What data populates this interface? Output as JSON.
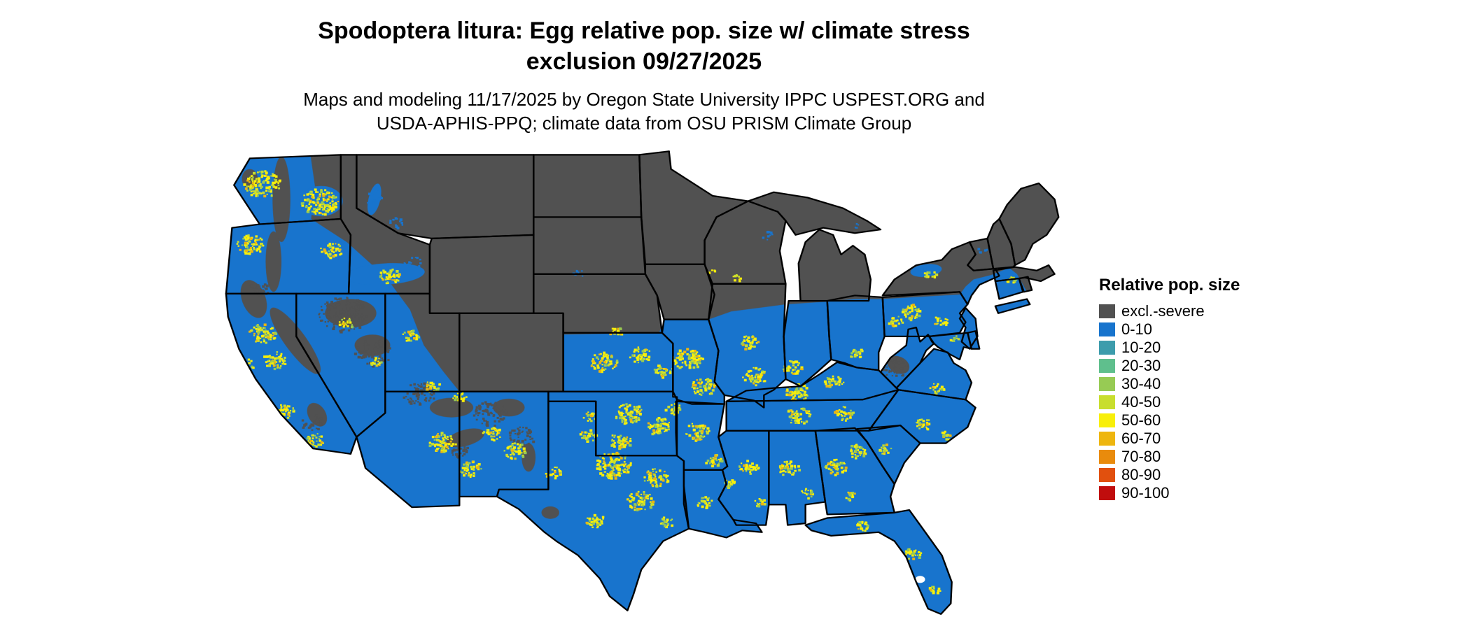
{
  "title": {
    "line1": "Spodoptera litura: Egg relative pop. size w/ climate stress",
    "line2": "exclusion 09/27/2025"
  },
  "subtitle": {
    "line1": "Maps and modeling 11/17/2025 by Oregon State University IPPC USPEST.ORG and",
    "line2": "USDA-APHIS-PPQ; climate data from OSU PRISM Climate Group"
  },
  "legend": {
    "title": "Relative pop. size",
    "entries": [
      {
        "label": "excl.-severe",
        "color": "#515151"
      },
      {
        "label": "0-10",
        "color": "#1874cd"
      },
      {
        "label": "10-20",
        "color": "#3d9cac"
      },
      {
        "label": "20-30",
        "color": "#5fbf8d"
      },
      {
        "label": "30-40",
        "color": "#97cb54"
      },
      {
        "label": "40-50",
        "color": "#c8de2e"
      },
      {
        "label": "50-60",
        "color": "#f8ef0a"
      },
      {
        "label": "60-70",
        "color": "#eeb60f"
      },
      {
        "label": "70-80",
        "color": "#e98b0c"
      },
      {
        "label": "80-90",
        "color": "#e1500e"
      },
      {
        "label": "90-100",
        "color": "#c00d0d"
      }
    ]
  },
  "map": {
    "background": "#ffffff",
    "border_color": "#000000",
    "excluded_color": "#515151",
    "base_color": "#1874cd",
    "speckle_palette": [
      "#f8ef0a",
      "#c8de2e",
      "#eeb60f",
      "#97cb54"
    ]
  }
}
